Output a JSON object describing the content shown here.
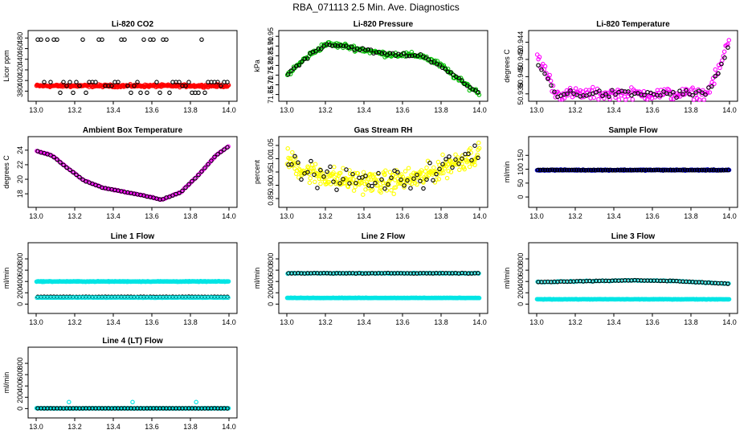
{
  "figure": {
    "title": "RBA_071113  2.5 Min. Ave. Diagnostics"
  },
  "chart_data": [
    {
      "type": "scatter",
      "title": "Li-820 CO2",
      "xlabel": "",
      "ylabel": "Licor ppm",
      "xlim": [
        13.0,
        14.0
      ],
      "ylim": [
        370,
        485
      ],
      "xticks": [
        "13.0",
        "13.2",
        "13.4",
        "13.6",
        "13.8",
        "14.0"
      ],
      "yticks": [
        {
          "v": 380,
          "l": "380"
        },
        {
          "v": 400,
          "l": "400"
        },
        {
          "v": 420,
          "l": "420"
        },
        {
          "v": 440,
          "l": "440"
        },
        {
          "v": 460,
          "l": "460"
        },
        {
          "v": 480,
          "l": "480"
        }
      ],
      "series": [
        {
          "color": "#ff0000",
          "pattern": "band",
          "base": 390,
          "amp": 0,
          "noise": 2,
          "n": 300
        },
        {
          "color": "#000000",
          "pattern": "levels",
          "levels": [
            377,
            390,
            397,
            477
          ],
          "n": 60
        }
      ]
    },
    {
      "type": "scatter",
      "title": "Li-820 Pressure",
      "xlabel": "",
      "ylabel": "kPa",
      "xlim": [
        13.0,
        14.0
      ],
      "ylim": [
        71.64,
        71.955
      ],
      "xticks": [
        "13.0",
        "13.2",
        "13.4",
        "13.6",
        "13.8",
        "14.0"
      ],
      "yticks": [
        {
          "v": 71.65,
          "l": "71.65"
        },
        {
          "v": 71.7,
          "l": "71.70"
        },
        {
          "v": 71.75,
          "l": "71.75"
        },
        {
          "v": 71.8,
          "l": "71.80"
        },
        {
          "v": 71.85,
          "l": "71.85"
        },
        {
          "v": 71.9,
          "l": "71.90"
        },
        {
          "v": 71.95,
          "l": "71.95"
        }
      ],
      "series": [
        {
          "color": "#00c000",
          "pattern": "curve",
          "curve": [
            [
              13.0,
              71.75
            ],
            [
              13.1,
              71.84
            ],
            [
              13.2,
              71.91
            ],
            [
              13.3,
              71.9
            ],
            [
              13.5,
              71.86
            ],
            [
              13.7,
              71.85
            ],
            [
              13.8,
              71.8
            ],
            [
              13.9,
              71.72
            ],
            [
              14.0,
              71.655
            ]
          ],
          "noise": 0.012,
          "n": 180
        },
        {
          "color": "#000000",
          "pattern": "curve",
          "curve": [
            [
              13.0,
              71.75
            ],
            [
              13.1,
              71.84
            ],
            [
              13.2,
              71.91
            ],
            [
              13.3,
              71.9
            ],
            [
              13.5,
              71.86
            ],
            [
              13.7,
              71.85
            ],
            [
              13.8,
              71.8
            ],
            [
              13.9,
              71.72
            ],
            [
              14.0,
              71.655
            ]
          ],
          "noise": 0.008,
          "n": 70
        }
      ]
    },
    {
      "type": "scatter",
      "title": "Li-820 Temperature",
      "xlabel": "",
      "ylabel": "degrees C",
      "xlim": [
        13.0,
        14.0
      ],
      "ylim": [
        50.9377,
        50.9448
      ],
      "xticks": [
        "13.0",
        "13.2",
        "13.4",
        "13.6",
        "13.8",
        "14.0"
      ],
      "yticks": [
        {
          "v": 50.938,
          "l": "50.938"
        },
        {
          "v": 50.94,
          "l": "50.940"
        },
        {
          "v": 50.942,
          "l": "50.942"
        },
        {
          "v": 50.944,
          "l": "50.944"
        }
      ],
      "series": [
        {
          "color": "#ff00ff",
          "pattern": "curve",
          "curve": [
            [
              13.0,
              50.9425
            ],
            [
              13.05,
              50.9405
            ],
            [
              13.1,
              50.938
            ],
            [
              13.88,
              50.938
            ],
            [
              13.94,
              50.9405
            ],
            [
              14.0,
              50.9445
            ]
          ],
          "noise": 0.0006,
          "n": 170
        },
        {
          "color": "#000000",
          "pattern": "curve",
          "curve": [
            [
              13.0,
              50.9415
            ],
            [
              13.05,
              50.94
            ],
            [
              13.1,
              50.938
            ],
            [
              13.88,
              50.938
            ],
            [
              13.94,
              50.9405
            ],
            [
              14.0,
              50.9435
            ]
          ],
          "noise": 0.0004,
          "n": 60
        }
      ]
    },
    {
      "type": "scatter",
      "title": "Ambient Box Temperature",
      "xlabel": "",
      "ylabel": "degrees C",
      "xlim": [
        13.0,
        14.0
      ],
      "ylim": [
        16.8,
        25.2
      ],
      "xticks": [
        "13.0",
        "13.2",
        "13.4",
        "13.6",
        "13.8",
        "14.0"
      ],
      "yticks": [
        {
          "v": 18,
          "l": "18"
        },
        {
          "v": 20,
          "l": "20"
        },
        {
          "v": 22,
          "l": "22"
        },
        {
          "v": 24,
          "l": "24"
        }
      ],
      "series": [
        {
          "color": "#ff00ff",
          "pattern": "curve",
          "curve": [
            [
              13.0,
              23.9
            ],
            [
              13.08,
              23.3
            ],
            [
              13.15,
              21.8
            ],
            [
              13.25,
              19.8
            ],
            [
              13.35,
              18.8
            ],
            [
              13.45,
              18.3
            ],
            [
              13.55,
              17.8
            ],
            [
              13.65,
              17.2
            ],
            [
              13.75,
              18.2
            ],
            [
              13.85,
              20.8
            ],
            [
              13.93,
              23.2
            ],
            [
              14.0,
              24.6
            ]
          ],
          "noise": 0.05,
          "n": 140
        },
        {
          "color": "#000000",
          "pattern": "curve",
          "curve": [
            [
              13.0,
              23.9
            ],
            [
              13.08,
              23.3
            ],
            [
              13.15,
              21.8
            ],
            [
              13.25,
              19.8
            ],
            [
              13.35,
              18.8
            ],
            [
              13.45,
              18.3
            ],
            [
              13.55,
              17.8
            ],
            [
              13.65,
              17.2
            ],
            [
              13.75,
              18.2
            ],
            [
              13.85,
              20.8
            ],
            [
              13.93,
              23.2
            ],
            [
              14.0,
              24.6
            ]
          ],
          "noise": 0.03,
          "n": 60
        }
      ]
    },
    {
      "type": "scatter",
      "title": "Gas Stream RH",
      "xlabel": "",
      "ylabel": "percent",
      "xlim": [
        13.0,
        14.0
      ],
      "ylim": [
        0.835,
        1.065
      ],
      "xticks": [
        "13.0",
        "13.2",
        "13.4",
        "13.6",
        "13.8",
        "14.0"
      ],
      "yticks": [
        {
          "v": 0.85,
          "l": "0.85"
        },
        {
          "v": 0.9,
          "l": "0.90"
        },
        {
          "v": 0.95,
          "l": "0.95"
        },
        {
          "v": 1.0,
          "l": "1.00"
        },
        {
          "v": 1.05,
          "l": "1.05"
        }
      ],
      "series": [
        {
          "color": "#ffff00",
          "pattern": "curve",
          "curve": [
            [
              13.0,
              1.0
            ],
            [
              13.1,
              0.95
            ],
            [
              13.3,
              0.92
            ],
            [
              13.5,
              0.91
            ],
            [
              13.7,
              0.93
            ],
            [
              13.85,
              0.98
            ],
            [
              14.0,
              1.02
            ]
          ],
          "noise": 0.035,
          "n": 300
        },
        {
          "color": "#000000",
          "pattern": "curve",
          "curve": [
            [
              13.0,
              1.0
            ],
            [
              13.1,
              0.95
            ],
            [
              13.3,
              0.92
            ],
            [
              13.5,
              0.91
            ],
            [
              13.7,
              0.93
            ],
            [
              13.85,
              0.98
            ],
            [
              14.0,
              1.02
            ]
          ],
          "noise": 0.035,
          "n": 60
        }
      ]
    },
    {
      "type": "scatter",
      "title": "Sample Flow",
      "xlabel": "",
      "ylabel": "ml/min",
      "xlim": [
        13.0,
        14.0
      ],
      "ylim": [
        -20,
        200
      ],
      "xticks": [
        "13.0",
        "13.2",
        "13.4",
        "13.6",
        "13.8",
        "14.0"
      ],
      "yticks": [
        {
          "v": 0,
          "l": "0"
        },
        {
          "v": 50,
          "l": "50"
        },
        {
          "v": 100,
          "l": "100"
        },
        {
          "v": 150,
          "l": "150"
        }
      ],
      "series": [
        {
          "color": "#0000cc",
          "pattern": "band",
          "base": 97,
          "amp": 0,
          "noise": 1.5,
          "n": 260
        },
        {
          "color": "#000000",
          "pattern": "band",
          "base": 97,
          "amp": 0,
          "noise": 1,
          "n": 80
        }
      ]
    },
    {
      "type": "scatter",
      "title": "Line 1 Flow",
      "xlabel": "",
      "ylabel": "ml/min",
      "xlim": [
        13.0,
        14.0
      ],
      "ylim": [
        -80,
        1000
      ],
      "xticks": [
        "13.0",
        "13.2",
        "13.4",
        "13.6",
        "13.8",
        "14.0"
      ],
      "yticks": [
        {
          "v": 0,
          "l": "0"
        },
        {
          "v": 200,
          "l": "200"
        },
        {
          "v": 400,
          "l": "400"
        },
        {
          "v": 600,
          "l": "600"
        },
        {
          "v": 800,
          "l": "800"
        }
      ],
      "series": [
        {
          "color": "#00e5e5",
          "pattern": "band",
          "base": 400,
          "amp": 0,
          "noise": 5,
          "n": 260
        },
        {
          "color": "#000000",
          "pattern": "band",
          "base": 130,
          "amp": 0,
          "noise": 2,
          "n": 60
        },
        {
          "color": "#00e5e5",
          "pattern": "band",
          "base": 115,
          "amp": 0,
          "noise": 3,
          "n": 120
        }
      ]
    },
    {
      "type": "scatter",
      "title": "Line 2 Flow",
      "xlabel": "",
      "ylabel": "ml/min",
      "xlim": [
        13.0,
        14.0
      ],
      "ylim": [
        -80,
        1000
      ],
      "xticks": [
        "13.0",
        "13.2",
        "13.4",
        "13.6",
        "13.8",
        "14.0"
      ],
      "yticks": [
        {
          "v": 0,
          "l": "0"
        },
        {
          "v": 200,
          "l": "200"
        },
        {
          "v": 400,
          "l": "400"
        },
        {
          "v": 600,
          "l": "600"
        },
        {
          "v": 800,
          "l": "800"
        }
      ],
      "series": [
        {
          "color": "#00e5e5",
          "pattern": "band",
          "base": 110,
          "amp": 0,
          "noise": 3,
          "n": 260
        },
        {
          "color": "#00e5e5",
          "pattern": "band",
          "base": 545,
          "amp": 0,
          "noise": 5,
          "n": 120
        },
        {
          "color": "#000000",
          "pattern": "band",
          "base": 545,
          "amp": 0,
          "noise": 4,
          "n": 60
        }
      ]
    },
    {
      "type": "scatter",
      "title": "Line 3 Flow",
      "xlabel": "",
      "ylabel": "ml/min",
      "xlim": [
        13.0,
        14.0
      ],
      "ylim": [
        -80,
        1000
      ],
      "xticks": [
        "13.0",
        "13.2",
        "13.4",
        "13.6",
        "13.8",
        "14.0"
      ],
      "yticks": [
        {
          "v": 0,
          "l": "0"
        },
        {
          "v": 200,
          "l": "200"
        },
        {
          "v": 400,
          "l": "400"
        },
        {
          "v": 600,
          "l": "600"
        },
        {
          "v": 800,
          "l": "800"
        }
      ],
      "series": [
        {
          "color": "#00e5e5",
          "pattern": "band",
          "base": 85,
          "amp": 0,
          "noise": 3,
          "n": 260
        },
        {
          "color": "#00e5e5",
          "pattern": "curve",
          "curve": [
            [
              13.0,
              390
            ],
            [
              13.5,
              420
            ],
            [
              13.7,
              410
            ],
            [
              14.0,
              360
            ]
          ],
          "noise": 6,
          "n": 110
        },
        {
          "color": "#000000",
          "pattern": "curve",
          "curve": [
            [
              13.0,
              390
            ],
            [
              13.5,
              420
            ],
            [
              13.7,
              410
            ],
            [
              14.0,
              360
            ]
          ],
          "noise": 4,
          "n": 60
        }
      ]
    },
    {
      "type": "scatter",
      "title": "Line 4 (LT) Flow",
      "xlabel": "",
      "ylabel": "ml/min",
      "xlim": [
        13.0,
        14.0
      ],
      "ylim": [
        -80,
        1000
      ],
      "xticks": [
        "13.0",
        "13.2",
        "13.4",
        "13.6",
        "13.8",
        "14.0"
      ],
      "yticks": [
        {
          "v": 0,
          "l": "0"
        },
        {
          "v": 200,
          "l": "200"
        },
        {
          "v": 400,
          "l": "400"
        },
        {
          "v": 600,
          "l": "600"
        },
        {
          "v": 800,
          "l": "800"
        }
      ],
      "series": [
        {
          "color": "#00e5e5",
          "pattern": "band",
          "base": 5,
          "amp": 0,
          "noise": 2,
          "n": 260
        },
        {
          "color": "#000000",
          "pattern": "band",
          "base": 5,
          "amp": 0,
          "noise": 1,
          "n": 60
        },
        {
          "color": "#00e5e5",
          "pattern": "points",
          "points": [
            [
              13.17,
              115
            ],
            [
              13.5,
              115
            ],
            [
              13.83,
              115
            ]
          ]
        }
      ]
    }
  ]
}
